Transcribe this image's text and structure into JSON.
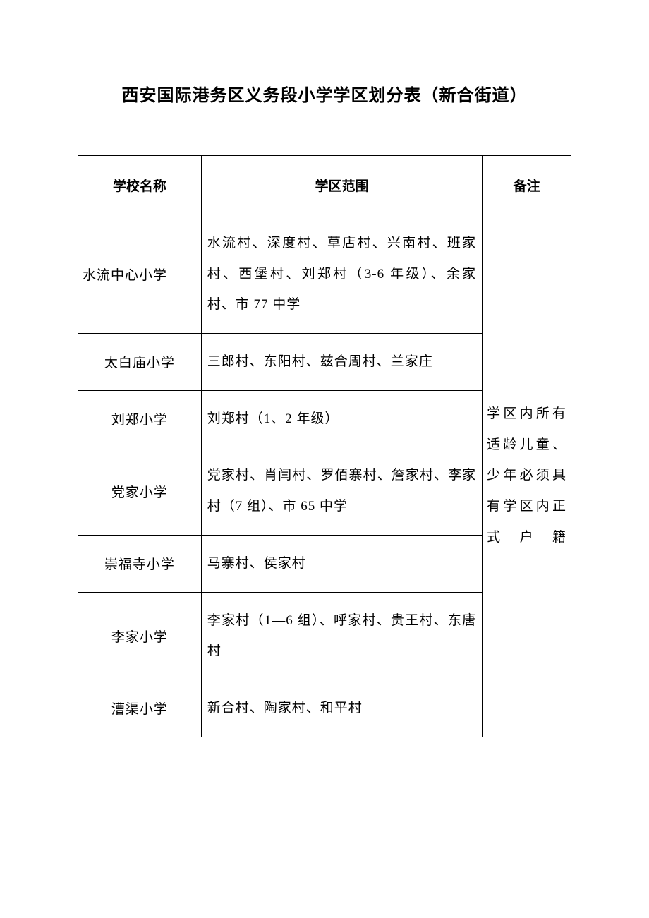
{
  "document": {
    "title": "西安国际港务区义务段小学学区划分表（新合街道）",
    "title_fontsize": 24,
    "title_fontweight": "bold",
    "body_fontsize": 19,
    "font_family": "SimSun",
    "text_color": "#000000",
    "background_color": "#ffffff",
    "border_color": "#000000",
    "line_height": 2.3
  },
  "table": {
    "type": "table",
    "columns": [
      {
        "key": "school",
        "label": "学校名称",
        "width_pct": 25,
        "align": "center"
      },
      {
        "key": "scope",
        "label": "学区范围",
        "width_pct": 57,
        "align": "left"
      },
      {
        "key": "notes",
        "label": "备注",
        "width_pct": 18,
        "align": "justify"
      }
    ],
    "rows": [
      {
        "school": "水流中心小学",
        "scope": "水流村、深度村、草店村、兴南村、班家村、西堡村、刘郑村（3-6 年级）、余家村、市 77 中学",
        "school_align": "left"
      },
      {
        "school": "太白庙小学",
        "scope": "三郎村、东阳村、兹合周村、兰家庄",
        "school_align": "center"
      },
      {
        "school": "刘郑小学",
        "scope": "刘郑村（1、2 年级）",
        "school_align": "center"
      },
      {
        "school": "党家小学",
        "scope": "党家村、肖闫村、罗佰寨村、詹家村、李家村（7 组）、市 65 中学",
        "school_align": "center"
      },
      {
        "school": "崇福寺小学",
        "scope": "马寨村、侯家村",
        "school_align": "center"
      },
      {
        "school": "李家小学",
        "scope": "李家村（1—6 组）、呼家村、贵王村、东唐村",
        "school_align": "center"
      },
      {
        "school": "漕渠小学",
        "scope": "新合村、陶家村、和平村",
        "school_align": "center"
      }
    ],
    "notes_merged": "学区内所有适龄儿童、少年必须具有学区内正式户籍",
    "notes_rowspan": 7
  }
}
